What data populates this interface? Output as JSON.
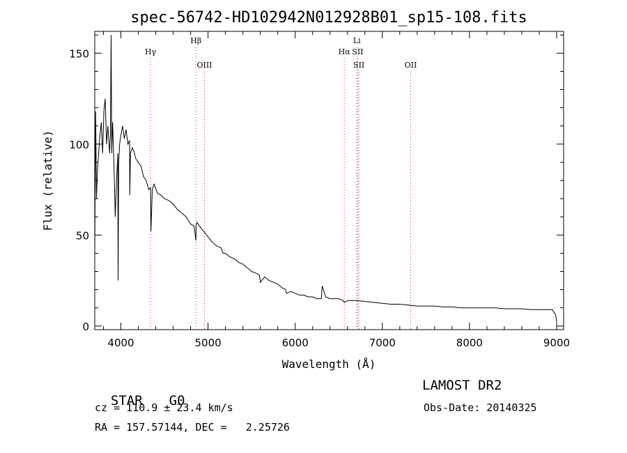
{
  "chart_data": {
    "type": "line",
    "title": "spec-56742-HD102942N012928B01_sp15-108.fits",
    "xlabel": "Wavelength (Å)",
    "ylabel": "Flux (relative)",
    "xlim": [
      3700,
      9080
    ],
    "ylim": [
      -2,
      162
    ],
    "xticks": [
      4000,
      5000,
      6000,
      7000,
      8000,
      9000
    ],
    "xtick_labels": [
      "4000",
      "5000",
      "6000",
      "7000",
      "8000",
      "9000"
    ],
    "yticks": [
      0,
      50,
      100,
      150
    ],
    "ytick_labels": [
      "0",
      "50",
      "100",
      "150"
    ],
    "grid": false,
    "series": [
      {
        "name": "spectrum",
        "color": "#000000",
        "x": [
          3700,
          3710,
          3720,
          3730,
          3745,
          3760,
          3775,
          3790,
          3805,
          3820,
          3835,
          3850,
          3870,
          3880,
          3888,
          3895,
          3905,
          3920,
          3935,
          3950,
          3965,
          3968,
          3975,
          3985,
          4000,
          4020,
          4040,
          4060,
          4080,
          4100,
          4102,
          4110,
          4130,
          4150,
          4170,
          4200,
          4230,
          4260,
          4290,
          4320,
          4340,
          4345,
          4360,
          4380,
          4420,
          4460,
          4500,
          4550,
          4600,
          4650,
          4700,
          4750,
          4800,
          4840,
          4861,
          4862,
          4875,
          4900,
          4950,
          5000,
          5050,
          5100,
          5150,
          5172,
          5200,
          5250,
          5300,
          5350,
          5400,
          5450,
          5500,
          5550,
          5590,
          5600,
          5650,
          5700,
          5750,
          5800,
          5850,
          5890,
          5900,
          5950,
          6000,
          6050,
          6100,
          6150,
          6200,
          6250,
          6300,
          6310,
          6350,
          6400,
          6450,
          6500,
          6550,
          6563,
          6600,
          6650,
          6700,
          6800,
          6900,
          7000,
          7100,
          7200,
          7300,
          7400,
          7500,
          7600,
          7700,
          7800,
          7900,
          8000,
          8100,
          8200,
          8300,
          8400,
          8500,
          8600,
          8700,
          8800,
          8900,
          8950,
          8990,
          9000
        ],
        "y": [
          40,
          118,
          70,
          85,
          95,
          105,
          112,
          95,
          118,
          125,
          100,
          110,
          95,
          105,
          160,
          95,
          112,
          90,
          60,
          80,
          95,
          25,
          90,
          100,
          105,
          110,
          103,
          108,
          100,
          102,
          72,
          95,
          98,
          96,
          92,
          90,
          88,
          82,
          80,
          75,
          76,
          52,
          75,
          78,
          73,
          72,
          70,
          69,
          67,
          64,
          62,
          60,
          56,
          55,
          47,
          55,
          57,
          55,
          52,
          49,
          46,
          44,
          43,
          40,
          40,
          38,
          37,
          35,
          34,
          32,
          30,
          29,
          28,
          24,
          27,
          25,
          24,
          23,
          21,
          20,
          18,
          19,
          18,
          17,
          17,
          16,
          16,
          15,
          15,
          22,
          16,
          15,
          15,
          15,
          14,
          13,
          14,
          14,
          14,
          13.5,
          13,
          12.5,
          12,
          12,
          11.5,
          11,
          11,
          11,
          10.5,
          10.5,
          10,
          10,
          10,
          10,
          10,
          9.5,
          9.5,
          9.5,
          9,
          9,
          9,
          9,
          6,
          2
        ]
      }
    ],
    "lines": [
      {
        "label": "Hγ",
        "wave": 4340,
        "color": "#cc3333",
        "row": 1
      },
      {
        "label": "Hβ",
        "wave": 4861,
        "color": "#cc3333",
        "row": 0
      },
      {
        "label": "OIII",
        "wave": 4959,
        "color": "#cc3333",
        "row": 2
      },
      {
        "label": "Hα",
        "wave": 6563,
        "color": "#cc3333",
        "row": 1
      },
      {
        "label": "Li",
        "wave": 6708,
        "color": "#cc3333",
        "row": 0
      },
      {
        "label": "SII",
        "wave": 6717,
        "color": "#cc3333",
        "row": 1
      },
      {
        "label": "SII",
        "wave": 6731,
        "color": "#cc3333",
        "row": 2
      },
      {
        "label": "OII",
        "wave": 7325,
        "color": "#cc3333",
        "row": 2
      }
    ]
  },
  "info": {
    "class_label": "STAR",
    "subclass": "G0",
    "survey": "LAMOST DR2",
    "cz": "cz = 110.9 ± 23.4 km/s",
    "obs_date": "Obs-Date: 20140325",
    "coords": "RA = 157.57144, DEC =   2.25726"
  }
}
